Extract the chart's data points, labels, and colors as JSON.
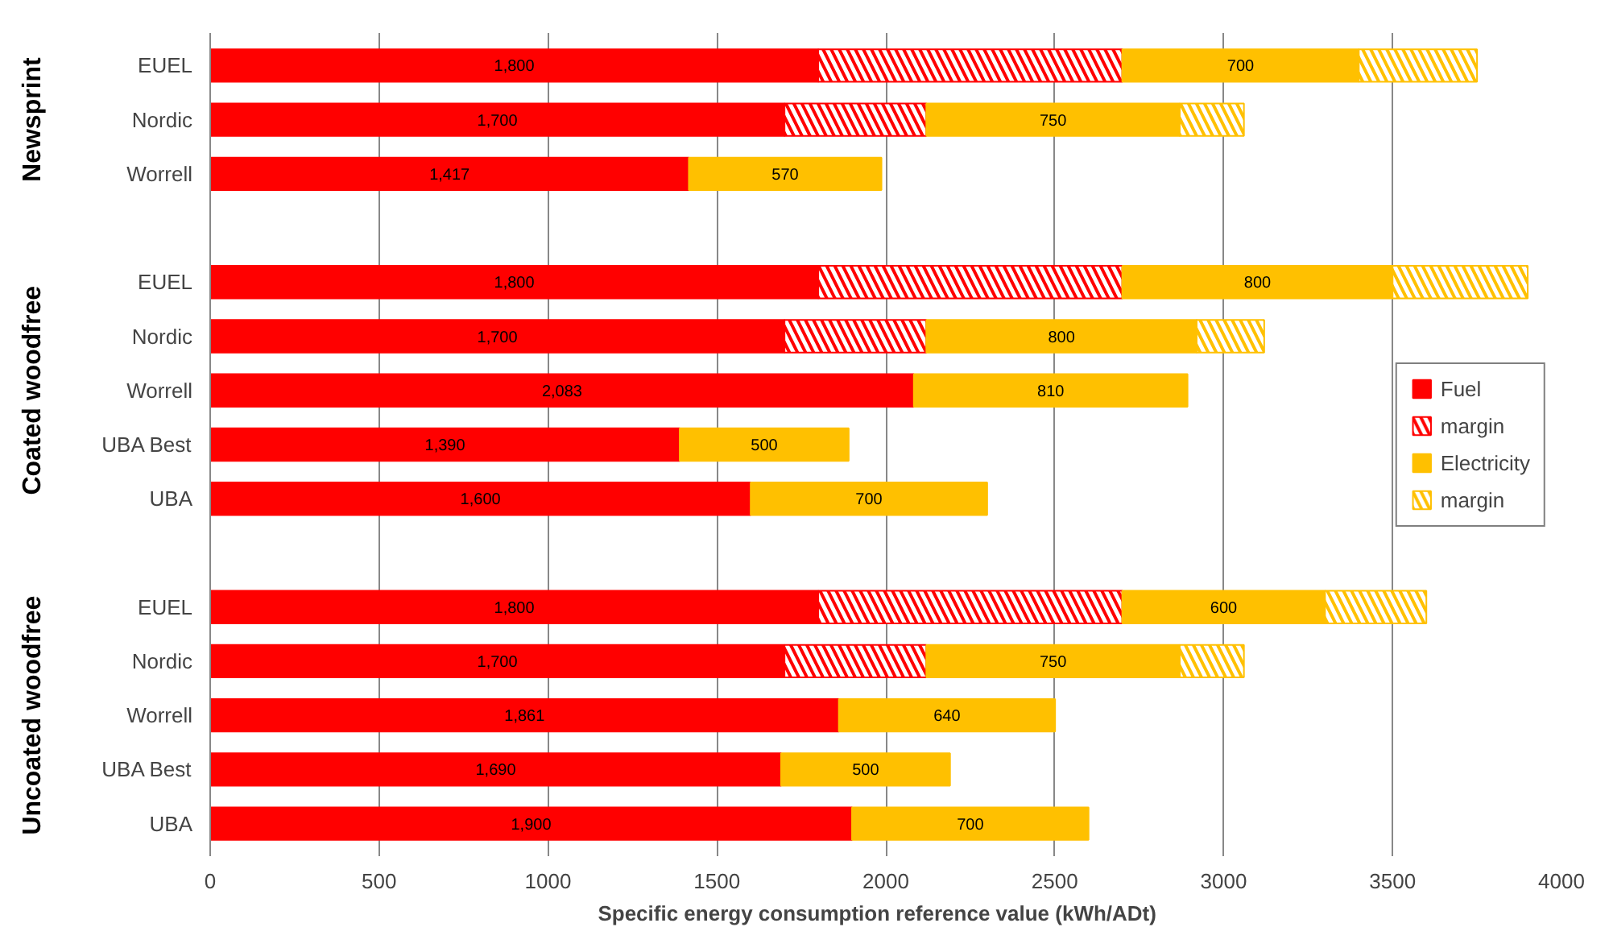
{
  "chart_data": {
    "type": "bar",
    "orientation": "horizontal",
    "stacked": true,
    "xlabel": "Specific  energy consumption  reference value  (kWh/ADt)",
    "categories": [
      "EUEL",
      "Nordic",
      "Worrell",
      null,
      "EUEL",
      "Nordic",
      "Worrell",
      "UBA Best",
      "UBA",
      null,
      "EUEL",
      "Nordic",
      "Worrell",
      "UBA Best",
      "UBA"
    ],
    "series": [
      {
        "name": "Fuel",
        "color": "#ff0000",
        "values": [
          1800,
          1700,
          1417,
          null,
          1800,
          1700,
          2083,
          1390,
          1600,
          null,
          1800,
          1700,
          1861,
          1690,
          1900
        ],
        "value_labels": [
          "1,800",
          "1,700",
          "1,417",
          null,
          "1,800",
          "1,700",
          "2,083",
          "1,390",
          "1,600",
          null,
          "1,800",
          "1,700",
          "1,861",
          "1,690",
          "1,900"
        ]
      },
      {
        "name": "margin",
        "color": "#ff0000",
        "values": [
          900,
          420,
          null,
          null,
          900,
          420,
          null,
          null,
          null,
          null,
          900,
          420,
          null,
          null,
          null
        ]
      },
      {
        "name": "Electricity",
        "color": "#ffc000",
        "values": [
          700,
          750,
          570,
          null,
          800,
          800,
          810,
          500,
          700,
          null,
          600,
          750,
          640,
          500,
          700
        ],
        "value_labels": [
          "700",
          "750",
          "570",
          null,
          "800",
          "800",
          "810",
          "500",
          "700",
          null,
          "600",
          "750",
          "640",
          "500",
          "700"
        ]
      },
      {
        "name": "margin",
        "color": "#ffc000",
        "values": [
          350,
          190,
          null,
          null,
          400,
          200,
          null,
          null,
          null,
          null,
          300,
          190,
          null,
          null,
          null
        ]
      }
    ],
    "xlim": [
      0,
      4000
    ],
    "xticks": [
      0,
      500,
      1000,
      1500,
      2000,
      2500,
      3000,
      3500,
      4000
    ],
    "grid": "x",
    "legend": "right",
    "annotations": [
      "Newsprint",
      "Coated woodfree",
      "Uncoated woodfree"
    ]
  }
}
